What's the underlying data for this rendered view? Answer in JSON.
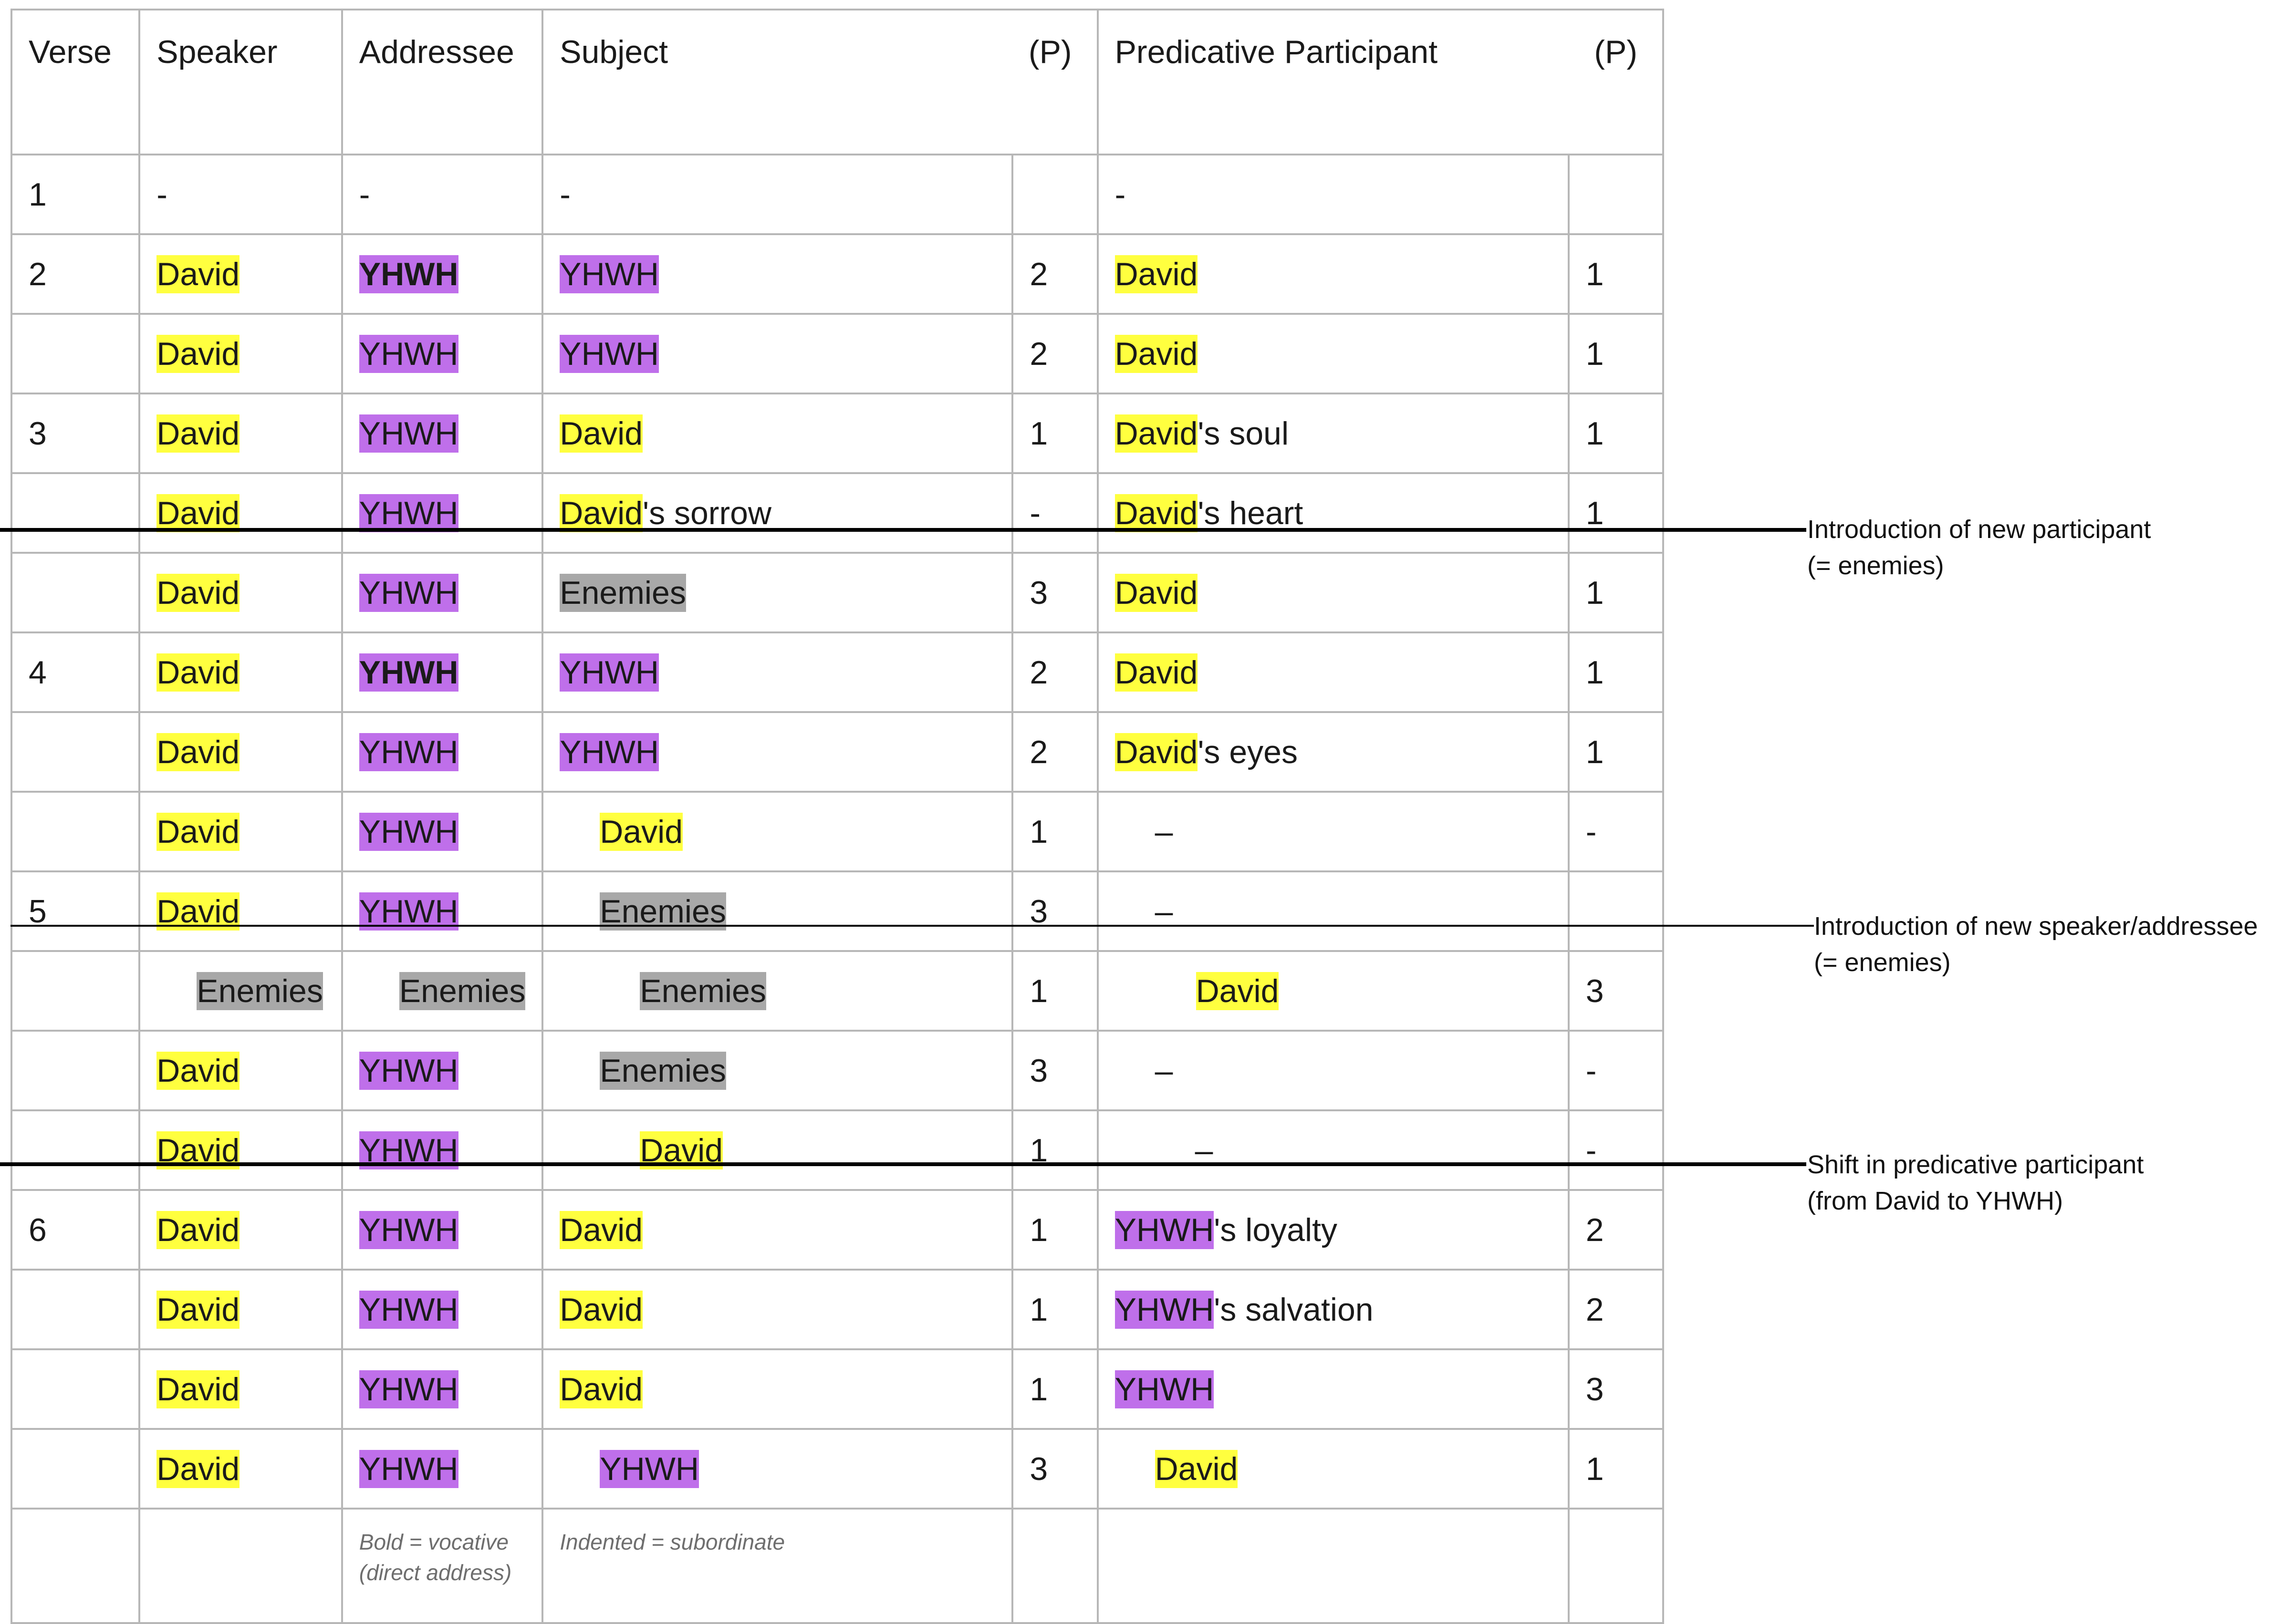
{
  "headers": {
    "verse": "Verse",
    "speaker": "Speaker",
    "addressee": "Addressee",
    "subject": "Subject",
    "subject_p": "(P)",
    "predicative": "Predicative Participant",
    "predicative_p": "(P)"
  },
  "rows": [
    {
      "verse": "1",
      "speaker": "-",
      "addressee": "-",
      "subject": "-",
      "subject_p": "",
      "pred": "-",
      "pred_p": ""
    },
    {
      "verse": "2",
      "speaker": "David",
      "addressee": "YHWH",
      "subject": "YHWH",
      "subject_p": "2",
      "pred": "David",
      "pred_p": "1"
    },
    {
      "verse": "",
      "speaker": "David",
      "addressee": "YHWH",
      "subject": "YHWH",
      "subject_p": "2",
      "pred": "David",
      "pred_p": "1"
    },
    {
      "verse": "3",
      "speaker": "David",
      "addressee": "YHWH",
      "subject": "David",
      "subject_p": "1",
      "pred": "David",
      "pred_suffix": "'s soul",
      "pred_p": "1"
    },
    {
      "verse": "",
      "speaker": "David",
      "addressee": "YHWH",
      "subject": "David",
      "subject_suffix": "'s sorrow",
      "subject_p": "-",
      "pred": "David",
      "pred_suffix": "'s heart",
      "pred_p": "1"
    },
    {
      "verse": "",
      "speaker": "David",
      "addressee": "YHWH",
      "subject": "Enemies",
      "subject_p": "3",
      "pred": "David",
      "pred_p": "1"
    },
    {
      "verse": "4",
      "speaker": "David",
      "addressee": "YHWH",
      "subject": "YHWH",
      "subject_p": "2",
      "pred": "David",
      "pred_p": "1"
    },
    {
      "verse": "",
      "speaker": "David",
      "addressee": "YHWH",
      "subject": "YHWH",
      "subject_p": "2",
      "pred": "David",
      "pred_suffix": "'s eyes",
      "pred_p": "1"
    },
    {
      "verse": "",
      "speaker": "David",
      "addressee": "YHWH",
      "subject": "David",
      "subject_p": "1",
      "pred": "–",
      "pred_p": "-"
    },
    {
      "verse": "5",
      "speaker": "David",
      "addressee": "YHWH",
      "subject": "Enemies",
      "subject_p": "3",
      "pred": "–",
      "pred_p": ""
    },
    {
      "verse": "",
      "speaker": "Enemies",
      "addressee": "Enemies",
      "subject": "Enemies",
      "subject_p": "1",
      "pred": "David",
      "pred_p": "3"
    },
    {
      "verse": "",
      "speaker": "David",
      "addressee": "YHWH",
      "subject": "Enemies",
      "subject_p": "3",
      "pred": "–",
      "pred_p": "-"
    },
    {
      "verse": "",
      "speaker": "David",
      "addressee": "YHWH",
      "subject": "David",
      "subject_p": "1",
      "pred": "–",
      "pred_p": "-"
    },
    {
      "verse": "6",
      "speaker": "David",
      "addressee": "YHWH",
      "subject": "David",
      "subject_p": "1",
      "pred": "YHWH",
      "pred_suffix": "'s loyalty",
      "pred_p": "2"
    },
    {
      "verse": "",
      "speaker": "David",
      "addressee": "YHWH",
      "subject": "David",
      "subject_p": "1",
      "pred": "YHWH",
      "pred_suffix": "'s salvation",
      "pred_p": "2"
    },
    {
      "verse": "",
      "speaker": "David",
      "addressee": "YHWH",
      "subject": "David",
      "subject_p": "1",
      "pred": "YHWH",
      "pred_p": "3"
    },
    {
      "verse": "",
      "speaker": "David",
      "addressee": "YHWH",
      "subject": "YHWH",
      "subject_p": "3",
      "pred": "David",
      "pred_p": "1"
    }
  ],
  "legend": {
    "bold_note": "Bold = vocative (direct address)",
    "indent_note": "Indented = subordinate"
  },
  "annotations": {
    "new_participant_line1": "Introduction of new participant",
    "new_participant_line2": "(= enemies)",
    "new_speaker_line1": "Introduction of new speaker/addressee",
    "new_speaker_line2": "(= enemies)",
    "shift_line1": "Shift in predicative participant",
    "shift_line2": "(from David to YHWH)"
  },
  "colors": {
    "david_highlight": "#ffff3f",
    "yhwh_highlight": "#bf6fea",
    "enemies_highlight": "#a8a8a8",
    "grid_border": "#b7b7b7"
  }
}
